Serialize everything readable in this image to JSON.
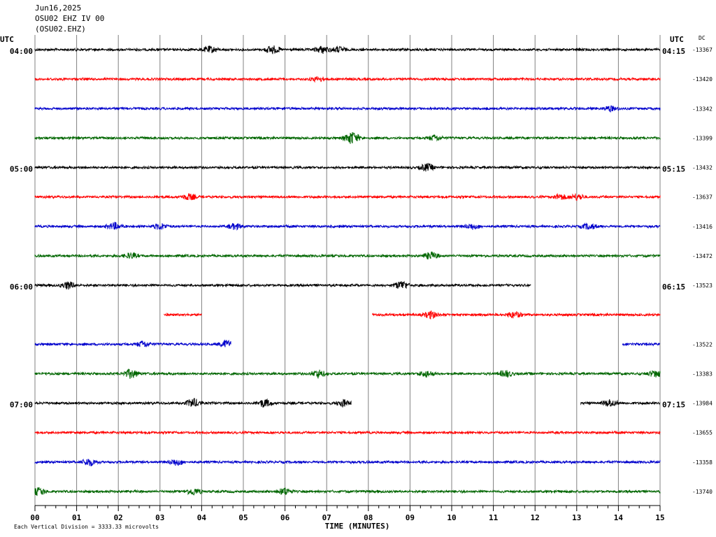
{
  "header": {
    "date": "Jun16,2025",
    "station": "OSU02 EHZ IV 00",
    "channel": "(OSU02.EHZ)"
  },
  "utc_left": "UTC",
  "utc_right": "UTC",
  "dc_label": "DC",
  "left_hours": [
    "04:00",
    "05:00",
    "06:00",
    "07:00"
  ],
  "right_hours": [
    "04:15",
    "05:15",
    "06:15",
    "07:15"
  ],
  "dc_values": [
    "-13367",
    "-13420",
    "-13342",
    "-13399",
    "-13432",
    "-13637",
    "-13416",
    "-13472",
    "-13523",
    "",
    "-13522",
    "-13383",
    "-13984",
    "-13655",
    "-13358",
    "-13740"
  ],
  "colors": {
    "black": "#000000",
    "red": "#ff0000",
    "blue": "#0000cc",
    "green": "#006600"
  },
  "footer": {
    "scale_note": "Each Vertical Division = 3333.33 microvolts",
    "x_title": "TIME (MINUTES)"
  },
  "chart_data": {
    "type": "line",
    "xlabel": "TIME (MINUTES)",
    "xlim": [
      0,
      15
    ],
    "x_ticks": [
      "00",
      "01",
      "02",
      "03",
      "04",
      "05",
      "06",
      "07",
      "08",
      "09",
      "10",
      "11",
      "12",
      "13",
      "14",
      "15"
    ],
    "trace_minutes": 15,
    "series": [
      {
        "color": "black",
        "segments": [
          [
            0,
            15
          ]
        ],
        "events": [
          [
            4.2,
            1.1
          ],
          [
            5.7,
            1.4
          ],
          [
            6.9,
            1.2
          ],
          [
            7.3,
            1.0
          ]
        ]
      },
      {
        "color": "red",
        "segments": [
          [
            0,
            15
          ]
        ],
        "events": [
          [
            6.8,
            0.9
          ]
        ]
      },
      {
        "color": "blue",
        "segments": [
          [
            0,
            15
          ]
        ],
        "events": [
          [
            13.8,
            0.9
          ]
        ]
      },
      {
        "color": "green",
        "segments": [
          [
            0,
            15
          ]
        ],
        "events": [
          [
            7.6,
            2.2
          ],
          [
            9.6,
            1.0
          ]
        ]
      },
      {
        "color": "black",
        "segments": [
          [
            0,
            15
          ]
        ],
        "events": [
          [
            9.4,
            1.2
          ]
        ]
      },
      {
        "color": "red",
        "segments": [
          [
            0,
            15
          ]
        ],
        "events": [
          [
            3.7,
            1.0
          ],
          [
            12.6,
            1.0
          ],
          [
            13.0,
            1.1
          ]
        ]
      },
      {
        "color": "blue",
        "segments": [
          [
            0,
            15
          ]
        ],
        "events": [
          [
            1.9,
            1.2
          ],
          [
            3.0,
            1.1
          ],
          [
            4.8,
            1.0
          ],
          [
            10.5,
            1.0
          ],
          [
            13.3,
            1.0
          ]
        ]
      },
      {
        "color": "green",
        "segments": [
          [
            0,
            15
          ]
        ],
        "events": [
          [
            2.3,
            1.0
          ],
          [
            9.5,
            1.3
          ]
        ]
      },
      {
        "color": "black",
        "segments": [
          [
            0,
            11.9
          ]
        ],
        "events": [
          [
            0.8,
            1.3
          ],
          [
            8.8,
            1.5
          ]
        ]
      },
      {
        "color": "red",
        "segments": [
          [
            3.1,
            4.0
          ],
          [
            8.1,
            15
          ]
        ],
        "events": [
          [
            9.5,
            1.2
          ],
          [
            11.5,
            1.1
          ]
        ]
      },
      {
        "color": "blue",
        "segments": [
          [
            0,
            4.7
          ],
          [
            14.1,
            15
          ]
        ],
        "events": [
          [
            2.6,
            1.1
          ],
          [
            4.6,
            1.3
          ]
        ]
      },
      {
        "color": "green",
        "segments": [
          [
            0,
            15
          ]
        ],
        "events": [
          [
            2.3,
            1.6
          ],
          [
            6.8,
            1.4
          ],
          [
            9.4,
            1.1
          ],
          [
            11.3,
            1.2
          ],
          [
            14.9,
            1.3
          ]
        ]
      },
      {
        "color": "black",
        "segments": [
          [
            0,
            7.6
          ],
          [
            13.1,
            15
          ]
        ],
        "events": [
          [
            3.8,
            1.6
          ],
          [
            5.5,
            1.4
          ],
          [
            7.4,
            1.2
          ],
          [
            13.8,
            1.3
          ]
        ]
      },
      {
        "color": "red",
        "segments": [
          [
            0,
            15
          ]
        ],
        "events": []
      },
      {
        "color": "blue",
        "segments": [
          [
            0,
            15
          ]
        ],
        "events": [
          [
            1.3,
            1.3
          ],
          [
            3.4,
            1.2
          ]
        ]
      },
      {
        "color": "green",
        "segments": [
          [
            0,
            15
          ]
        ],
        "events": [
          [
            0.1,
            1.3
          ],
          [
            3.8,
            1.2
          ],
          [
            6.0,
            1.3
          ]
        ]
      }
    ]
  }
}
